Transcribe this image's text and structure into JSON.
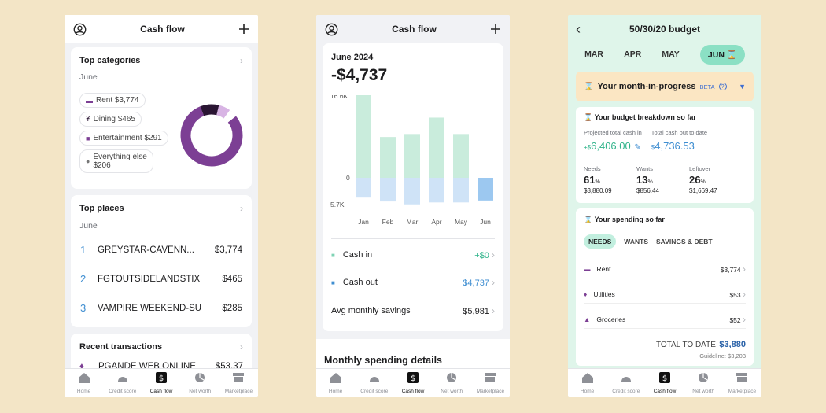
{
  "colors": {
    "purple": "#7c3f94",
    "green": "#2fb38a",
    "blue": "#3f8ed1",
    "mint": "#c9ecdc",
    "lightblue": "#cfe3f7"
  },
  "nav": [
    {
      "label": "Home",
      "icon": "home-icon"
    },
    {
      "label": "Credit score",
      "icon": "gauge-icon"
    },
    {
      "label": "Cash flow",
      "icon": "dollar-icon"
    },
    {
      "label": "Net worth",
      "icon": "pie-icon"
    },
    {
      "label": "Marketplace",
      "icon": "store-icon"
    }
  ],
  "s1": {
    "title": "Cash flow",
    "top_categories": {
      "title": "Top categories",
      "month": "June",
      "chips": [
        {
          "label": "Rent $3,774"
        },
        {
          "label": "Dining $465"
        },
        {
          "label": "Entertainment $291"
        },
        {
          "label": "Everything else",
          "label2": "$206"
        }
      ],
      "donut": [
        {
          "name": "Rent",
          "value": 3774,
          "color": "#7c3f94"
        },
        {
          "name": "Dining",
          "value": 465,
          "color": "#2a1533"
        },
        {
          "name": "Entertainment",
          "value": 291,
          "color": "#d8b4e4"
        },
        {
          "name": "Everything else",
          "value": 206,
          "color": "#ffffff"
        }
      ]
    },
    "top_places": {
      "title": "Top places",
      "month": "June",
      "rows": [
        {
          "rank": "1",
          "name": "GREYSTAR-CAVENN...",
          "amount": "$3,774"
        },
        {
          "rank": "2",
          "name": "FGTOUTSIDELANDSTIX",
          "amount": "$465"
        },
        {
          "rank": "3",
          "name": "VAMPIRE WEEKEND-SU",
          "amount": "$285"
        }
      ]
    },
    "recent": {
      "title": "Recent transactions",
      "name": "PGANDE WEB ONLINE",
      "amount": "$53.37"
    }
  },
  "s2": {
    "title": "Cash flow",
    "period": "June 2024",
    "net": "-$4,737",
    "chart_data": {
      "type": "bar",
      "categories": [
        "Jan",
        "Feb",
        "Mar",
        "Apr",
        "May",
        "Jun"
      ],
      "series": [
        {
          "name": "Cash in",
          "values": [
            16.6,
            8.2,
            8.8,
            12.1,
            8.8,
            0
          ]
        },
        {
          "name": "Cash out",
          "values": [
            -4.1,
            -4.9,
            -5.5,
            -5.1,
            -5.1,
            -4.7
          ]
        }
      ],
      "y_ticks": [
        "16.6K",
        "0",
        "5.7K"
      ],
      "ylim": [
        -5.7,
        16.6
      ]
    },
    "cash_in_label": "Cash in",
    "cash_in_value": "+$0",
    "cash_out_label": "Cash out",
    "cash_out_value": "$4,737",
    "avg_label": "Avg monthly savings",
    "avg_value": "$5,981",
    "details_title": "Monthly spending details"
  },
  "s3": {
    "title": "50/30/20 budget",
    "months": [
      "MAR",
      "APR",
      "MAY",
      "JUN"
    ],
    "banner": {
      "text": "Your month-in-progress",
      "beta": "BETA"
    },
    "breakdown": {
      "title": "Your budget breakdown so far",
      "proj_label": "Projected total cash in",
      "proj_prefix": "+$",
      "proj_value": "6,406.00",
      "out_label": "Total cash out to date",
      "out_prefix": "$",
      "out_value": "4,736.53",
      "cols": [
        {
          "label": "Needs",
          "pct": "61",
          "amt": "$3,880.09"
        },
        {
          "label": "Wants",
          "pct": "13",
          "amt": "$856.44"
        },
        {
          "label": "Leftover",
          "pct": "26",
          "amt": "$1,669.47"
        }
      ]
    },
    "spending": {
      "title": "Your spending so far",
      "tabs": [
        "NEEDS",
        "WANTS",
        "SAVINGS & DEBT"
      ],
      "rows": [
        {
          "label": "Rent",
          "amount": "$3,774"
        },
        {
          "label": "Utilities",
          "amount": "$53"
        },
        {
          "label": "Groceries",
          "amount": "$52"
        }
      ],
      "total_label": "TOTAL TO DATE",
      "total_value": "$3,880",
      "guideline": "Guideline: $3,203"
    }
  }
}
